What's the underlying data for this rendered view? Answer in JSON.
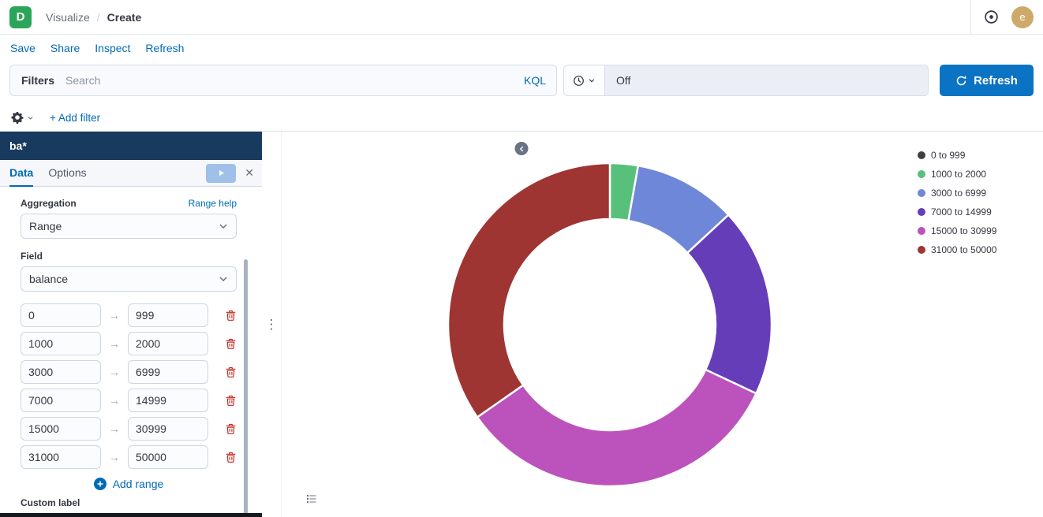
{
  "header": {
    "logo_text": "D",
    "breadcrumbs": [
      "Visualize",
      "Create"
    ],
    "avatar_text": "e"
  },
  "toolbar": {
    "items": [
      "Save",
      "Share",
      "Inspect",
      "Refresh"
    ]
  },
  "query_bar": {
    "filters_label": "Filters",
    "search_placeholder": "Search",
    "kql_label": "KQL",
    "time_value": "Off",
    "refresh_label": "Refresh"
  },
  "filter_bar": {
    "add_filter_label": "+ Add filter"
  },
  "sidebar": {
    "index_pattern": "ba*",
    "tabs": [
      {
        "label": "Data",
        "active": true
      },
      {
        "label": "Options",
        "active": false
      }
    ],
    "aggregation": {
      "label": "Aggregation",
      "help_link": "Range help",
      "value": "Range"
    },
    "field": {
      "label": "Field",
      "value": "balance"
    },
    "ranges": [
      {
        "from": "0",
        "to": "999"
      },
      {
        "from": "1000",
        "to": "2000"
      },
      {
        "from": "3000",
        "to": "6999"
      },
      {
        "from": "7000",
        "to": "14999"
      },
      {
        "from": "15000",
        "to": "30999"
      },
      {
        "from": "31000",
        "to": "50000"
      }
    ],
    "add_range_label": "Add range",
    "custom_label_label": "Custom label"
  },
  "chart_data": {
    "type": "pie",
    "subtype": "donut",
    "title": "",
    "categories": [
      "0 to 999",
      "1000 to 2000",
      "3000 to 6999",
      "7000 to 14999",
      "15000 to 30999",
      "31000 to 50000"
    ],
    "values_pct": [
      0,
      2.8,
      10.3,
      18.9,
      33.3,
      34.7
    ],
    "colors": [
      "#3F3F3F",
      "#57C17B",
      "#6F87D8",
      "#663DB8",
      "#BC52BC",
      "#9E3533"
    ],
    "legend_position": "right",
    "inner_radius_ratio": 0.655,
    "start_angle_deg": 0,
    "direction": "clockwise"
  }
}
